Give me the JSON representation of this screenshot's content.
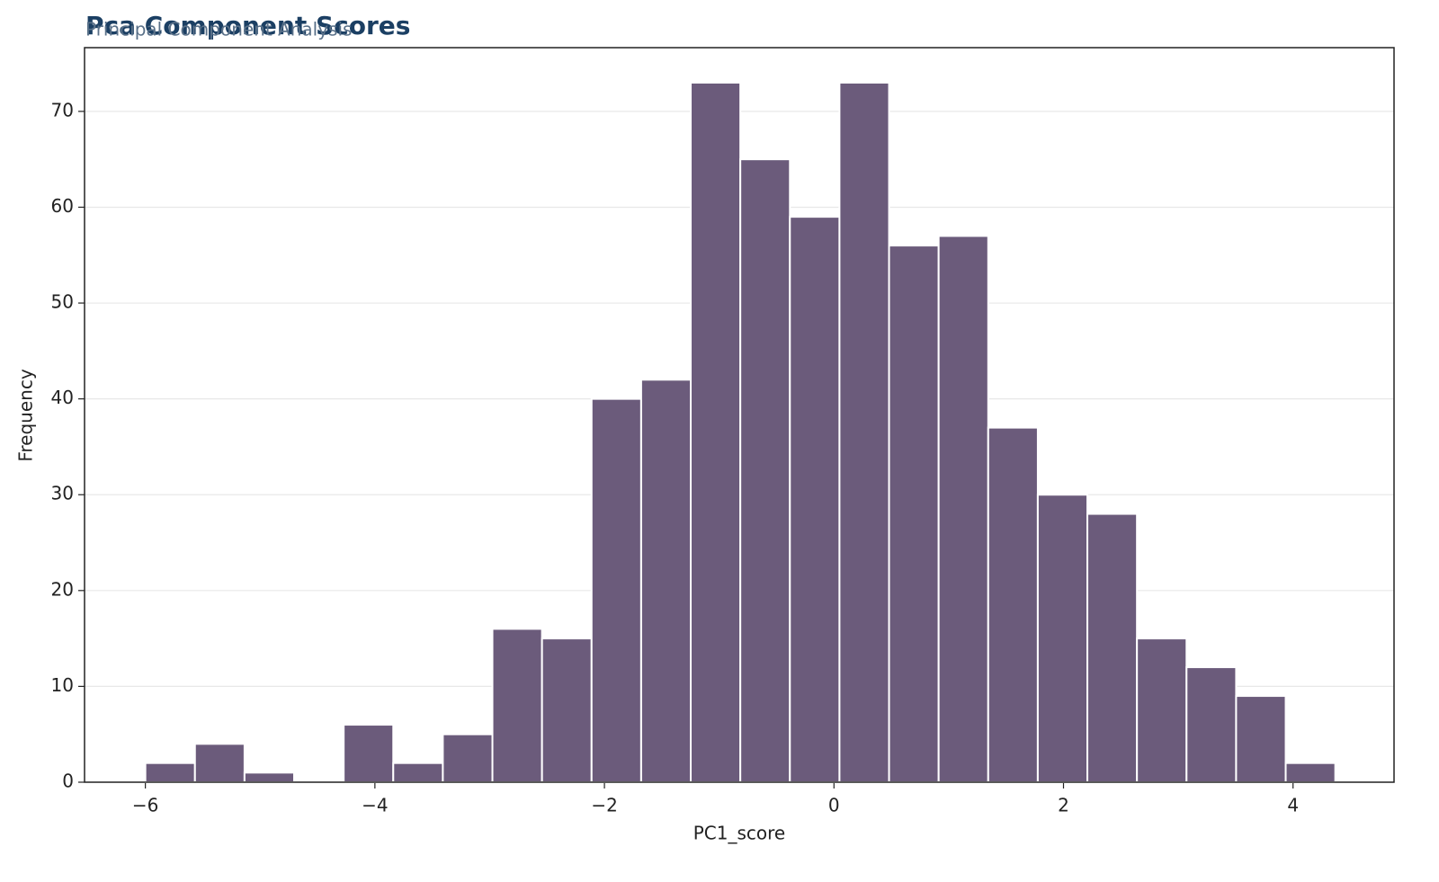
{
  "chart_data": {
    "type": "histogram",
    "title": "Pca Component Scores",
    "subtitle": "Principal Component Analysis",
    "x_label": "PC1_score",
    "y_label": "Frequency",
    "bins": [
      -6.0,
      -5.568,
      -5.136,
      -4.704,
      -4.272,
      -3.84,
      -3.408,
      -2.976,
      -2.544,
      -2.112,
      -1.68,
      -1.248,
      -0.816,
      -0.384,
      0.048,
      0.48,
      0.912,
      1.344,
      1.776,
      2.208,
      2.64,
      3.072,
      3.504,
      3.936,
      4.368
    ],
    "values": [
      2,
      4,
      1,
      0,
      6,
      2,
      5,
      16,
      15,
      40,
      42,
      73,
      65,
      59,
      73,
      56,
      57,
      37,
      30,
      28,
      15,
      12,
      9,
      2
    ],
    "color": "#6b5b7b",
    "xlim": [
      -6.53,
      4.88
    ],
    "xticks": [
      {
        "value": -6,
        "label": "−6"
      },
      {
        "value": -4,
        "label": "−4"
      },
      {
        "value": -2,
        "label": "−2"
      },
      0,
      2,
      4
    ],
    "ylim": [
      0,
      76.65
    ],
    "yticks": [
      0,
      10,
      20,
      30,
      40,
      50,
      60,
      70
    ],
    "grid": true
  }
}
